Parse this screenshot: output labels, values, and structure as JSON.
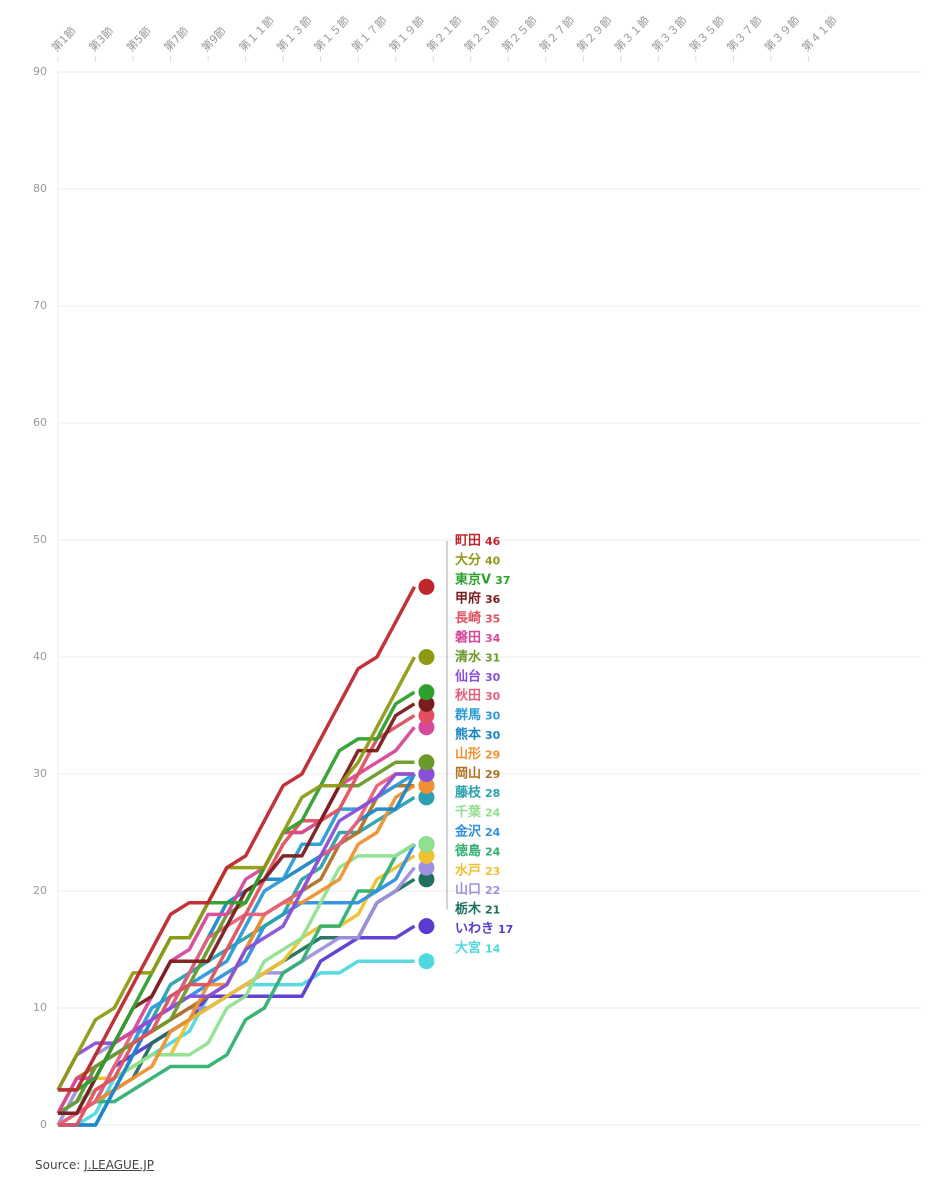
{
  "chart_data": {
    "type": "line",
    "x": [
      1,
      2,
      3,
      4,
      5,
      6,
      7,
      8,
      9,
      10,
      11,
      12,
      13,
      14,
      15,
      16,
      17,
      18,
      19,
      20
    ],
    "xlim": [
      1,
      47
    ],
    "xticks": [
      {
        "value": 1,
        "label": "第1節"
      },
      {
        "value": 3,
        "label": "第3節"
      },
      {
        "value": 5,
        "label": "第5節"
      },
      {
        "value": 7,
        "label": "第7節"
      },
      {
        "value": 9,
        "label": "第9節"
      },
      {
        "value": 11,
        "label": "第１１節"
      },
      {
        "value": 13,
        "label": "第１３節"
      },
      {
        "value": 15,
        "label": "第１５節"
      },
      {
        "value": 17,
        "label": "第１７節"
      },
      {
        "value": 19,
        "label": "第１９節"
      },
      {
        "value": 21,
        "label": "第２１節"
      },
      {
        "value": 23,
        "label": "第２３節"
      },
      {
        "value": 25,
        "label": "第２５節"
      },
      {
        "value": 27,
        "label": "第２７節"
      },
      {
        "value": 29,
        "label": "第２９節"
      },
      {
        "value": 31,
        "label": "第３１節"
      },
      {
        "value": 33,
        "label": "第３３節"
      },
      {
        "value": 35,
        "label": "第３５節"
      },
      {
        "value": 37,
        "label": "第３７節"
      },
      {
        "value": 39,
        "label": "第３９節"
      },
      {
        "value": 41,
        "label": "第４１節"
      }
    ],
    "ylim": [
      0,
      90
    ],
    "yticks": [
      0,
      10,
      20,
      30,
      40,
      50,
      60,
      70,
      80,
      90
    ],
    "grid": true,
    "series": [
      {
        "name": "町田",
        "color": "#c0272d",
        "values": [
          3,
          3,
          6,
          9,
          12,
          15,
          18,
          19,
          19,
          22,
          23,
          26,
          29,
          30,
          33,
          36,
          39,
          40,
          43,
          46
        ]
      },
      {
        "name": "大分",
        "color": "#8f9a14",
        "values": [
          3,
          6,
          9,
          10,
          13,
          13,
          16,
          16,
          19,
          22,
          22,
          22,
          25,
          28,
          29,
          29,
          31,
          34,
          37,
          40
        ]
      },
      {
        "name": "東京V",
        "color": "#2ea02e",
        "values": [
          3,
          3,
          4,
          7,
          10,
          13,
          16,
          16,
          19,
          19,
          19,
          22,
          25,
          26,
          29,
          32,
          33,
          33,
          36,
          37
        ]
      },
      {
        "name": "甲府",
        "color": "#7b1c1c",
        "values": [
          1,
          1,
          4,
          7,
          10,
          11,
          14,
          14,
          14,
          17,
          20,
          21,
          23,
          23,
          26,
          29,
          32,
          32,
          35,
          36
        ]
      },
      {
        "name": "長崎",
        "color": "#e05060",
        "values": [
          0,
          0,
          3,
          4,
          7,
          8,
          11,
          12,
          12,
          15,
          18,
          21,
          24,
          26,
          26,
          27,
          30,
          33,
          34,
          35
        ]
      },
      {
        "name": "磐田",
        "color": "#d8489a",
        "values": [
          1,
          4,
          4,
          7,
          8,
          11,
          14,
          15,
          18,
          18,
          21,
          22,
          25,
          25,
          26,
          29,
          30,
          31,
          32,
          34
        ]
      },
      {
        "name": "清水",
        "color": "#6a9a2a",
        "values": [
          1,
          2,
          5,
          6,
          7,
          8,
          9,
          12,
          15,
          18,
          19,
          22,
          25,
          25,
          26,
          29,
          29,
          30,
          31,
          31
        ]
      },
      {
        "name": "仙台",
        "color": "#8a4fd8",
        "values": [
          3,
          6,
          7,
          7,
          8,
          9,
          10,
          11,
          11,
          12,
          15,
          16,
          17,
          20,
          23,
          26,
          27,
          28,
          30,
          30
        ]
      },
      {
        "name": "秋田",
        "color": "#e8607a",
        "values": [
          0,
          1,
          2,
          5,
          8,
          9,
          10,
          13,
          16,
          17,
          18,
          18,
          19,
          20,
          23,
          24,
          26,
          29,
          30,
          30
        ]
      },
      {
        "name": "群馬",
        "color": "#2a9ad8",
        "values": [
          1,
          2,
          5,
          6,
          7,
          10,
          11,
          12,
          13,
          14,
          17,
          20,
          21,
          24,
          24,
          27,
          27,
          28,
          29,
          30
        ]
      },
      {
        "name": "熊本",
        "color": "#1a86c8",
        "values": [
          0,
          0,
          0,
          3,
          6,
          9,
          10,
          13,
          16,
          19,
          20,
          21,
          21,
          22,
          23,
          24,
          26,
          27,
          27,
          30
        ]
      },
      {
        "name": "山形",
        "color": "#f09030",
        "values": [
          0,
          1,
          2,
          3,
          4,
          5,
          8,
          9,
          12,
          12,
          15,
          18,
          19,
          19,
          20,
          21,
          24,
          25,
          28,
          29
        ]
      },
      {
        "name": "岡山",
        "color": "#b07020",
        "values": [
          1,
          4,
          5,
          6,
          7,
          8,
          9,
          10,
          11,
          12,
          15,
          18,
          19,
          20,
          21,
          24,
          25,
          28,
          29,
          29
        ]
      },
      {
        "name": "藤枝",
        "color": "#2aa0b0",
        "values": [
          1,
          1,
          4,
          7,
          8,
          9,
          12,
          13,
          14,
          15,
          16,
          17,
          18,
          21,
          22,
          25,
          25,
          26,
          27,
          28
        ]
      },
      {
        "name": "千葉",
        "color": "#90e090",
        "values": [
          1,
          2,
          3,
          4,
          5,
          6,
          6,
          6,
          7,
          10,
          11,
          14,
          15,
          16,
          19,
          22,
          23,
          23,
          23,
          24
        ]
      },
      {
        "name": "金沢",
        "color": "#3090e0",
        "values": [
          0,
          0,
          0,
          3,
          6,
          9,
          10,
          11,
          12,
          13,
          14,
          17,
          18,
          19,
          19,
          19,
          19,
          20,
          21,
          24
        ]
      },
      {
        "name": "徳島",
        "color": "#30b070",
        "values": [
          0,
          1,
          2,
          2,
          3,
          4,
          5,
          5,
          5,
          6,
          9,
          10,
          13,
          14,
          17,
          17,
          20,
          20,
          23,
          24
        ]
      },
      {
        "name": "水戸",
        "color": "#f0c030",
        "values": [
          1,
          1,
          4,
          4,
          5,
          6,
          6,
          9,
          10,
          11,
          12,
          13,
          14,
          16,
          17,
          17,
          18,
          21,
          22,
          23
        ]
      },
      {
        "name": "山口",
        "color": "#a090e0",
        "values": [
          0,
          3,
          6,
          7,
          8,
          8,
          9,
          10,
          10,
          11,
          12,
          13,
          13,
          14,
          15,
          16,
          16,
          19,
          20,
          22
        ]
      },
      {
        "name": "栃木",
        "color": "#207060",
        "values": [
          1,
          1,
          2,
          3,
          4,
          7,
          8,
          9,
          10,
          11,
          12,
          13,
          14,
          15,
          16,
          16,
          16,
          19,
          20,
          21
        ]
      },
      {
        "name": "いわき",
        "color": "#5a3ad0",
        "values": [
          1,
          1,
          2,
          5,
          6,
          7,
          8,
          9,
          11,
          11,
          11,
          11,
          11,
          11,
          14,
          15,
          16,
          16,
          16,
          17
        ]
      },
      {
        "name": "大宮",
        "color": "#50d8e0",
        "values": [
          0,
          0,
          1,
          4,
          5,
          6,
          7,
          8,
          11,
          11,
          12,
          12,
          12,
          12,
          13,
          13,
          14,
          14,
          14,
          14
        ]
      }
    ]
  },
  "source_label": "Source:",
  "source_link": "J.LEAGUE.JP"
}
